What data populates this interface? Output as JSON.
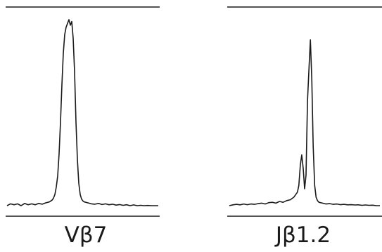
{
  "chart_data": [
    {
      "type": "line",
      "xlabel": "Vβ7",
      "ylim": [
        0,
        1
      ],
      "line_color": "#1a1a1a",
      "x": [
        0,
        5,
        10,
        15,
        20,
        25,
        30,
        35,
        40,
        45,
        50,
        55,
        60,
        62,
        64,
        66,
        68,
        70,
        72,
        74,
        76,
        78,
        80,
        82,
        84,
        86,
        88,
        90,
        92,
        94,
        96,
        98,
        100,
        102,
        104,
        106,
        108,
        110,
        115,
        120,
        125,
        130,
        135,
        140,
        145,
        150,
        155,
        160,
        165,
        170,
        175,
        180,
        185,
        190,
        195,
        200,
        205,
        210,
        215
      ],
      "values": [
        0.0,
        0.01,
        0.005,
        0.01,
        0.0,
        0.012,
        0.005,
        0.01,
        0.005,
        0.012,
        0.008,
        0.015,
        0.02,
        0.025,
        0.03,
        0.04,
        0.06,
        0.1,
        0.16,
        0.28,
        0.45,
        0.65,
        0.82,
        0.92,
        0.96,
        0.98,
        1.0,
        0.97,
        0.99,
        0.9,
        0.72,
        0.45,
        0.25,
        0.12,
        0.06,
        0.035,
        0.025,
        0.02,
        0.015,
        0.01,
        0.008,
        0.012,
        0.006,
        0.01,
        0.005,
        0.008,
        0.003,
        0.006,
        0.002,
        0.005,
        0.0,
        0.004,
        0.0,
        0.002,
        0.0,
        0.001,
        0.0,
        0.0,
        0.0
      ]
    },
    {
      "type": "line",
      "xlabel": "Jβ1.2",
      "ylim": [
        0,
        1
      ],
      "line_color": "#1a1a1a",
      "x": [
        0,
        5,
        10,
        15,
        20,
        25,
        30,
        35,
        40,
        45,
        50,
        55,
        60,
        65,
        70,
        75,
        80,
        85,
        90,
        95,
        97,
        99,
        101,
        103,
        105,
        107,
        109,
        111,
        113,
        115,
        117,
        119,
        121,
        123,
        125,
        130,
        135,
        140,
        145,
        150,
        155,
        160,
        165,
        170,
        175,
        180,
        185,
        190,
        195,
        200,
        205,
        210
      ],
      "values": [
        0.0,
        0.005,
        0.008,
        0.005,
        0.01,
        0.006,
        0.01,
        0.008,
        0.012,
        0.015,
        0.01,
        0.018,
        0.02,
        0.015,
        0.025,
        0.02,
        0.03,
        0.035,
        0.05,
        0.08,
        0.12,
        0.24,
        0.3,
        0.22,
        0.1,
        0.18,
        0.62,
        0.8,
        0.98,
        0.75,
        0.35,
        0.12,
        0.05,
        0.03,
        0.02,
        0.015,
        0.01,
        0.012,
        0.008,
        0.01,
        0.006,
        0.008,
        0.005,
        0.006,
        0.004,
        0.005,
        0.002,
        0.004,
        0.002,
        0.003,
        0.0,
        0.0
      ]
    }
  ]
}
